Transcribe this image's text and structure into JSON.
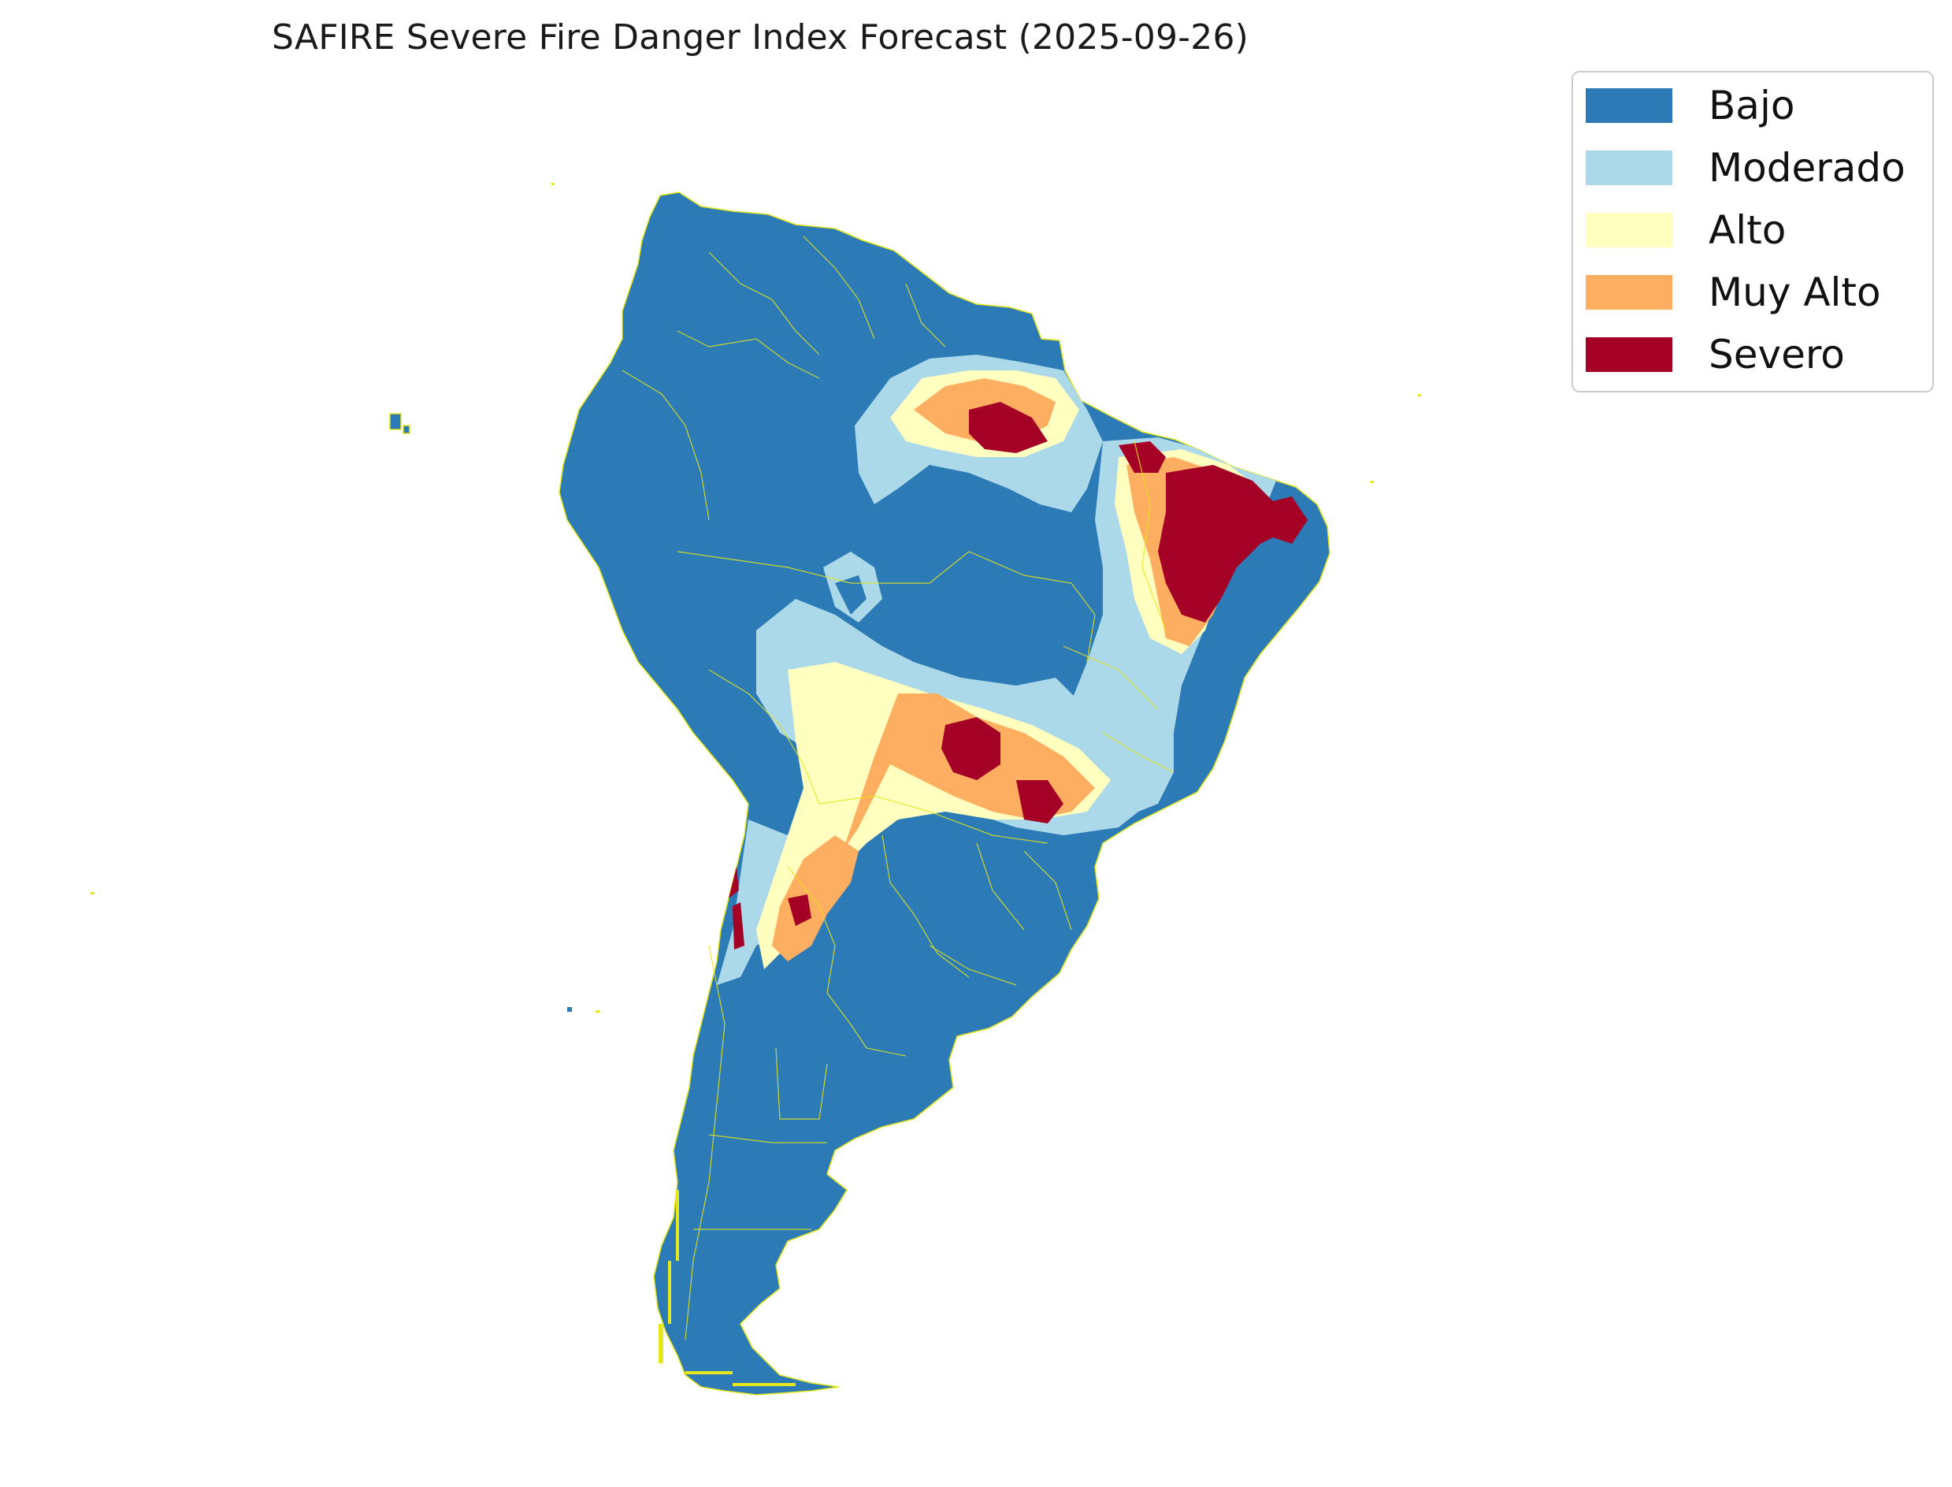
{
  "title": "SAFIRE Severe Fire Danger Index Forecast (2025-09-26)",
  "legend": {
    "items": [
      {
        "label": "Bajo",
        "color": "#2c7bb6"
      },
      {
        "label": "Moderado",
        "color": "#abd9e9"
      },
      {
        "label": "Alto",
        "color": "#ffffbf"
      },
      {
        "label": "Muy Alto",
        "color": "#fdae61"
      },
      {
        "label": "Severo",
        "color": "#a50026"
      }
    ]
  },
  "colors": {
    "border_lines": "#e6e61a",
    "background": "#ffffff"
  }
}
